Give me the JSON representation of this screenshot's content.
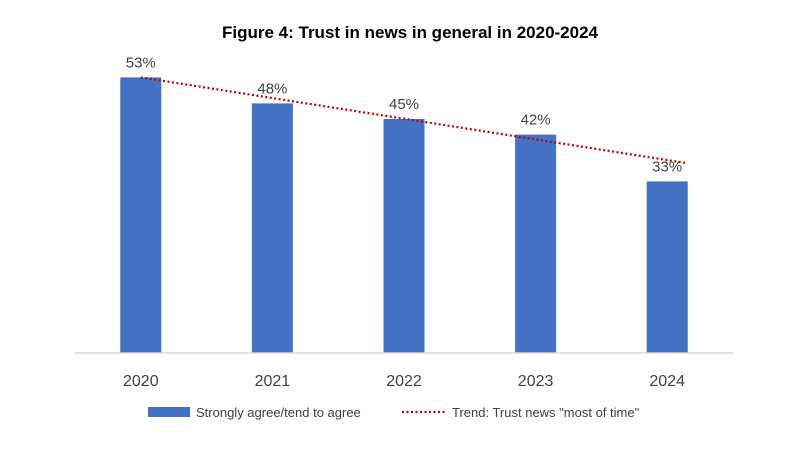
{
  "chart_data": {
    "type": "bar",
    "title": "Figure 4: Trust in news in general in 2020-2024",
    "categories": [
      "2020",
      "2021",
      "2022",
      "2023",
      "2024"
    ],
    "series": [
      {
        "name": "Strongly agree/tend to agree",
        "values": [
          53,
          48,
          45,
          42,
          33
        ],
        "labels": [
          "53%",
          "48%",
          "45%",
          "42%",
          "33%"
        ],
        "color": "#4472C4"
      }
    ],
    "trend": {
      "name": "Trend: Trust news \"most of time\"",
      "from": 53,
      "to": 36.5,
      "color": "#C00000",
      "style": "dotted"
    },
    "xlabel": "",
    "ylabel": "",
    "ylim": [
      0,
      60
    ],
    "grid": false,
    "legend_position": "bottom",
    "axis_color": "#D9D9D9"
  }
}
